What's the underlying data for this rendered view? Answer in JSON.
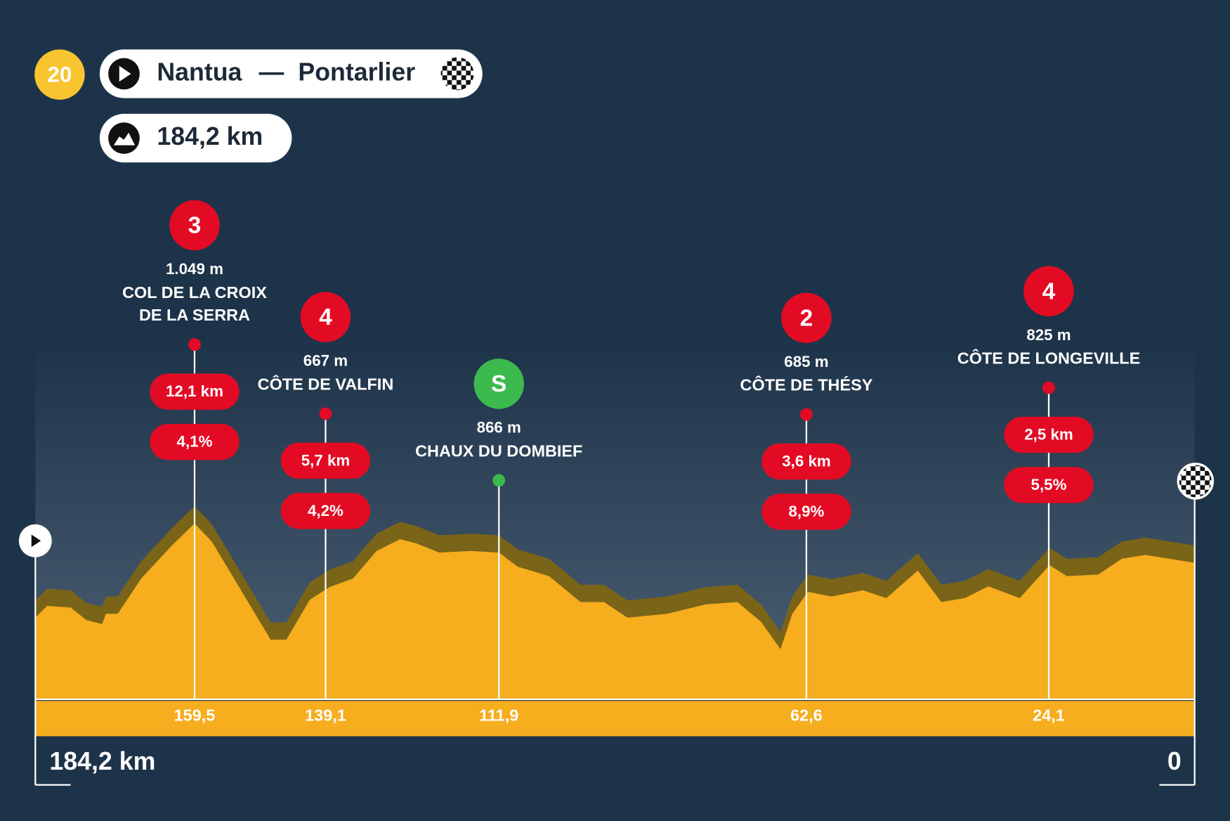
{
  "header": {
    "stage": "20",
    "start": "Nantua",
    "separator": "—",
    "finish": "Pontarlier",
    "distance": "184,2 km"
  },
  "climbs": [
    {
      "category": "3",
      "altitude": "1.049 m",
      "name": [
        "COL DE LA CROIX",
        "DE LA SERRA"
      ],
      "length": "12,1 km",
      "gradient": "4,1%",
      "km": "159,5"
    },
    {
      "category": "4",
      "altitude": "667 m",
      "name": [
        "CÔTE DE VALFIN"
      ],
      "length": "5,7 km",
      "gradient": "4,2%",
      "km": "139,1"
    },
    {
      "category": "S",
      "altitude": "866 m",
      "name": [
        "CHAUX DU DOMBIEF"
      ],
      "km": "111,9"
    },
    {
      "category": "2",
      "altitude": "685 m",
      "name": [
        "CÔTE DE THÉSY"
      ],
      "length": "3,6 km",
      "gradient": "8,9%",
      "km": "62,6"
    },
    {
      "category": "4",
      "altitude": "825 m",
      "name": [
        "CÔTE DE LONGEVILLE"
      ],
      "length": "2,5 km",
      "gradient": "5,5%",
      "km": "24,1"
    }
  ],
  "axis": {
    "start": "184,2 km",
    "end": "0"
  }
}
